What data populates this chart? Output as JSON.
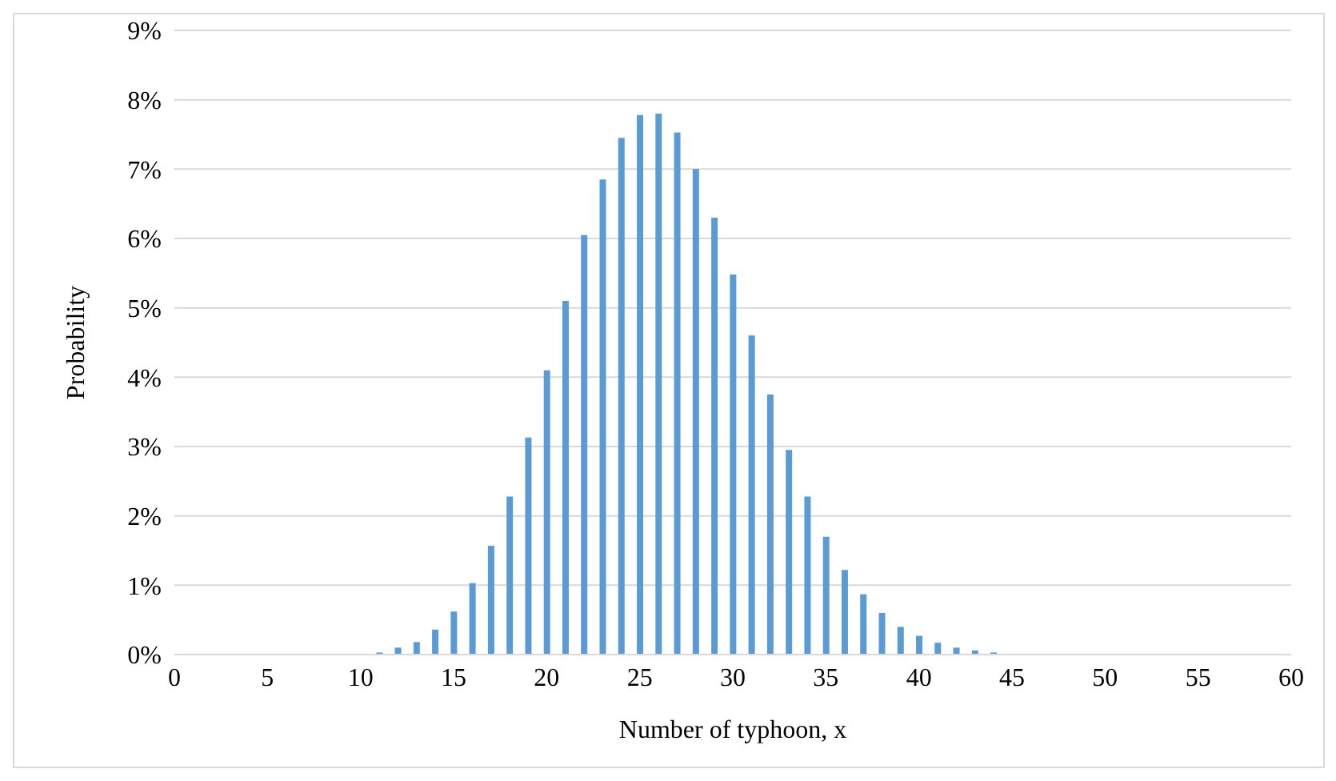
{
  "chart_data": {
    "type": "bar",
    "xlabel": "Number of typhoon, x",
    "ylabel": "Probability",
    "x": [
      11,
      12,
      13,
      14,
      15,
      16,
      17,
      18,
      19,
      20,
      21,
      22,
      23,
      24,
      25,
      26,
      27,
      28,
      29,
      30,
      31,
      32,
      33,
      34,
      35,
      36,
      37,
      38,
      39,
      40,
      41,
      42,
      43,
      44
    ],
    "values": [
      0.03,
      0.1,
      0.18,
      0.36,
      0.62,
      1.03,
      1.57,
      2.28,
      3.13,
      4.1,
      5.1,
      6.05,
      6.85,
      7.45,
      7.78,
      7.8,
      7.53,
      7.0,
      6.3,
      5.48,
      4.6,
      3.75,
      2.95,
      2.28,
      1.7,
      1.22,
      0.87,
      0.6,
      0.4,
      0.27,
      0.17,
      0.1,
      0.06,
      0.03
    ],
    "color": "#5b9bd5",
    "xlim": [
      0,
      60
    ],
    "xticks": [
      0,
      5,
      10,
      15,
      20,
      25,
      30,
      35,
      40,
      45,
      50,
      55,
      60
    ],
    "ylim": [
      0,
      9
    ],
    "yticks": [
      {
        "value": 0,
        "label": "0%"
      },
      {
        "value": 1,
        "label": "1%"
      },
      {
        "value": 2,
        "label": "2%"
      },
      {
        "value": 3,
        "label": "3%"
      },
      {
        "value": 4,
        "label": "4%"
      },
      {
        "value": 5,
        "label": "5%"
      },
      {
        "value": 6,
        "label": "6%"
      },
      {
        "value": 7,
        "label": "7%"
      },
      {
        "value": 8,
        "label": "8%"
      },
      {
        "value": 9,
        "label": "9%"
      }
    ],
    "grid": "y",
    "legend": false
  }
}
